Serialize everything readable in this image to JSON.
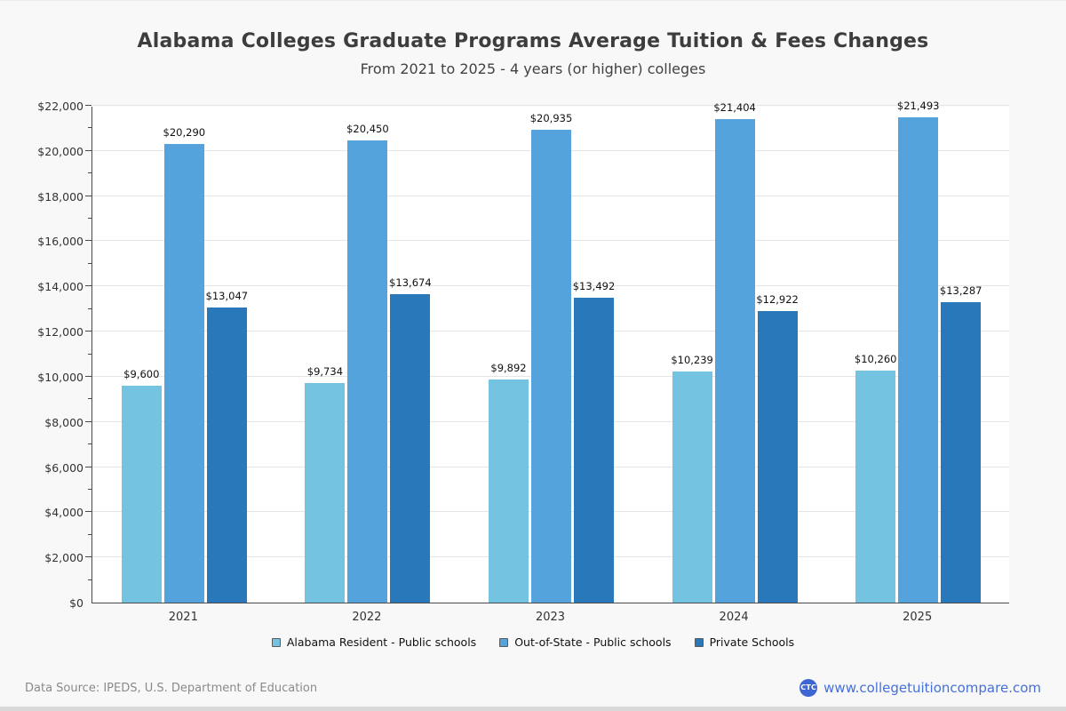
{
  "page": {
    "title": "Alabama Colleges Graduate Programs Average Tuition & Fees Changes",
    "subtitle": "From 2021 to 2025 - 4 years (or higher) colleges",
    "footer": {
      "source": "Data Source: IPEDS, U.S. Department of Education",
      "logo_text": "CTC",
      "website": "www.collegetuitioncompare.com"
    }
  },
  "colors": {
    "background": "#f8f8f8",
    "plot_background": "#ffffff",
    "gridline": "#e6e6e6",
    "axis_line": "#4a4a4a",
    "link_blue": "#4470da",
    "logo_blue": "#3d66d2"
  },
  "chart_data": {
    "type": "bar",
    "title": "Alabama Colleges Graduate Programs Average Tuition & Fees Changes",
    "subtitle": "From 2021 to 2025 - 4 years (or higher) colleges",
    "categories": [
      "2021",
      "2022",
      "2023",
      "2024",
      "2025"
    ],
    "series": [
      {
        "name": "Alabama Resident - Public schools",
        "color": "#73c3e1",
        "values": [
          9600,
          9734,
          9892,
          10239,
          10260
        ]
      },
      {
        "name": "Out-of-State - Public schools",
        "color": "#55a3dd",
        "values": [
          20290,
          20450,
          20935,
          21404,
          21493
        ]
      },
      {
        "name": "Private Schools",
        "color": "#2878ba",
        "values": [
          13047,
          13674,
          13492,
          12922,
          13287
        ]
      }
    ],
    "xlabel": "",
    "ylabel": "",
    "ylim": [
      0,
      22000
    ],
    "ytick_step": 2000,
    "ytick_minor_step": 1000,
    "ytick_labels": [
      "$0",
      "$2,000",
      "$4,000",
      "$6,000",
      "$8,000",
      "$10,000",
      "$12,000",
      "$14,000",
      "$16,000",
      "$18,000",
      "$20,000",
      "$22,000"
    ],
    "grid": true,
    "legend_position": "bottom",
    "data_label_prefix": "$"
  }
}
